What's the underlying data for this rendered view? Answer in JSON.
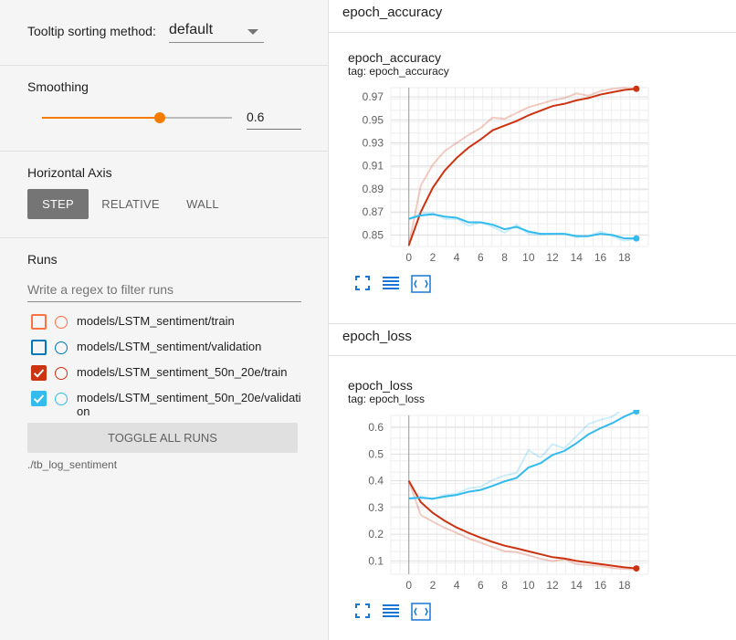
{
  "sidebar": {
    "tooltip_label": "Tooltip sorting method:",
    "tooltip_value": "default",
    "smoothing_label": "Smoothing",
    "smoothing_value": "0.6",
    "smoothing_fraction": 0.6,
    "axis_label": "Horizontal Axis",
    "axis_buttons": [
      "STEP",
      "RELATIVE",
      "WALL"
    ],
    "axis_selected": "STEP",
    "runs_label": "Runs",
    "filter_placeholder": "Write a regex to filter runs",
    "runs": [
      {
        "name": "models/LSTM_sentiment/train",
        "checked": false,
        "color": "#ff7043"
      },
      {
        "name": "models/LSTM_sentiment/validation",
        "checked": false,
        "color": "#0077bb"
      },
      {
        "name": "models/LSTM_sentiment_50n_20e/train",
        "checked": true,
        "color": "#cc3311"
      },
      {
        "name": "models/LSTM_sentiment_50n_20e/validation",
        "checked": true,
        "color": "#33bbee"
      }
    ],
    "toggle_label": "TOGGLE ALL RUNS",
    "logdir": "./tb_log_sentiment"
  },
  "main": {
    "card1_header": "epoch_accuracy",
    "card2_header": "epoch_loss"
  },
  "chart_data": [
    {
      "type": "line",
      "title": "epoch_accuracy",
      "subtitle": "tag: epoch_accuracy",
      "xticks": [
        "0",
        "2",
        "4",
        "6",
        "8",
        "10",
        "12",
        "14",
        "16",
        "18"
      ],
      "yticks": [
        "0.85",
        "0.87",
        "0.89",
        "0.91",
        "0.93",
        "0.95",
        "0.97"
      ],
      "xlim": [
        -1.5,
        20
      ],
      "ylim": [
        0.84,
        0.978
      ],
      "grid": true,
      "series": [
        {
          "name": "models/LSTM_sentiment_50n_20e/train",
          "color": "#cc3311",
          "x": [
            0,
            1,
            2,
            3,
            4,
            5,
            6,
            7,
            8,
            9,
            10,
            11,
            12,
            13,
            14,
            15,
            16,
            17,
            18,
            19
          ],
          "smoothed": [
            0.841,
            0.87,
            0.891,
            0.906,
            0.917,
            0.926,
            0.933,
            0.941,
            0.945,
            0.949,
            0.954,
            0.958,
            0.962,
            0.964,
            0.967,
            0.969,
            0.972,
            0.974,
            0.976,
            0.977
          ],
          "raw": [
            0.841,
            0.893,
            0.911,
            0.923,
            0.93,
            0.937,
            0.943,
            0.952,
            0.951,
            0.956,
            0.961,
            0.964,
            0.967,
            0.969,
            0.973,
            0.971,
            0.975,
            0.977,
            0.978,
            0.977
          ]
        },
        {
          "name": "models/LSTM_sentiment_50n_20e/validation",
          "color": "#33bbee",
          "x": [
            0,
            1,
            2,
            3,
            4,
            5,
            6,
            7,
            8,
            9,
            10,
            11,
            12,
            13,
            14,
            15,
            16,
            17,
            18,
            19
          ],
          "smoothed": [
            0.864,
            0.867,
            0.868,
            0.866,
            0.865,
            0.861,
            0.861,
            0.859,
            0.855,
            0.857,
            0.853,
            0.851,
            0.851,
            0.851,
            0.849,
            0.849,
            0.851,
            0.85,
            0.847,
            0.847
          ],
          "raw": [
            0.864,
            0.869,
            0.869,
            0.864,
            0.864,
            0.858,
            0.861,
            0.857,
            0.852,
            0.859,
            0.851,
            0.85,
            0.851,
            0.851,
            0.848,
            0.849,
            0.853,
            0.849,
            0.845,
            0.847
          ]
        }
      ]
    },
    {
      "type": "line",
      "title": "epoch_loss",
      "subtitle": "tag: epoch_loss",
      "xticks": [
        "0",
        "2",
        "4",
        "6",
        "8",
        "10",
        "12",
        "14",
        "16",
        "18"
      ],
      "yticks": [
        "0.1",
        "0.2",
        "0.3",
        "0.4",
        "0.5",
        "0.6"
      ],
      "xlim": [
        -1.5,
        20
      ],
      "ylim": [
        0.05,
        0.645
      ],
      "grid": true,
      "series": [
        {
          "name": "models/LSTM_sentiment_50n_20e/train",
          "color": "#cc3311",
          "x": [
            0,
            1,
            2,
            3,
            4,
            5,
            6,
            7,
            8,
            9,
            10,
            11,
            12,
            13,
            14,
            15,
            16,
            17,
            18,
            19
          ],
          "smoothed": [
            0.4,
            0.32,
            0.28,
            0.25,
            0.225,
            0.205,
            0.187,
            0.171,
            0.157,
            0.147,
            0.136,
            0.125,
            0.114,
            0.109,
            0.1,
            0.094,
            0.088,
            0.082,
            0.076,
            0.072
          ],
          "raw": [
            0.4,
            0.272,
            0.247,
            0.224,
            0.205,
            0.184,
            0.168,
            0.152,
            0.136,
            0.133,
            0.121,
            0.108,
            0.099,
            0.106,
            0.088,
            0.084,
            0.081,
            0.073,
            0.07,
            0.068
          ]
        },
        {
          "name": "models/LSTM_sentiment_50n_20e/validation",
          "color": "#33bbee",
          "x": [
            0,
            1,
            2,
            3,
            4,
            5,
            6,
            7,
            8,
            9,
            10,
            11,
            12,
            13,
            14,
            15,
            16,
            17,
            18,
            19
          ],
          "smoothed": [
            0.334,
            0.337,
            0.333,
            0.341,
            0.347,
            0.359,
            0.366,
            0.381,
            0.398,
            0.411,
            0.45,
            0.466,
            0.497,
            0.512,
            0.541,
            0.574,
            0.597,
            0.616,
            0.641,
            0.66
          ],
          "raw": [
            0.334,
            0.342,
            0.33,
            0.347,
            0.352,
            0.372,
            0.378,
            0.403,
            0.42,
            0.43,
            0.515,
            0.487,
            0.537,
            0.522,
            0.567,
            0.613,
            0.628,
            0.64,
            0.675,
            0.69
          ]
        }
      ]
    }
  ]
}
